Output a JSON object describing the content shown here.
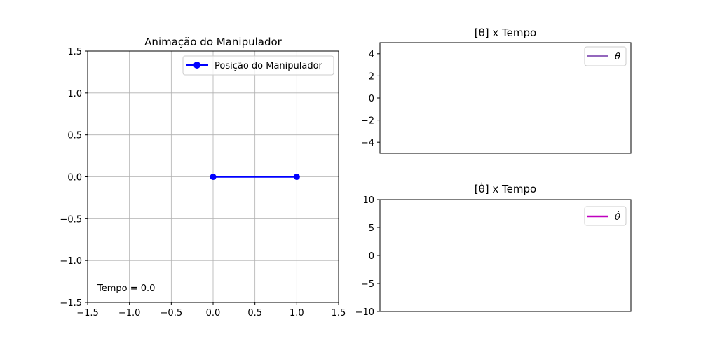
{
  "chart_data": [
    {
      "type": "line",
      "title": "Animação do Manipulador",
      "xlim": [
        -1.5,
        1.5
      ],
      "ylim": [
        -1.5,
        1.5
      ],
      "xticks": [
        "−1.5",
        "−1.0",
        "−0.5",
        "0.0",
        "0.5",
        "1.0",
        "1.5"
      ],
      "xtick_values": [
        -1.5,
        -1.0,
        -0.5,
        0.0,
        0.5,
        1.0,
        1.5
      ],
      "yticks": [
        "−1.5",
        "−1.0",
        "−0.5",
        "0.0",
        "0.5",
        "1.0",
        "1.5"
      ],
      "ytick_values": [
        -1.5,
        -1.0,
        -0.5,
        0.0,
        0.5,
        1.0,
        1.5
      ],
      "grid": true,
      "legend": "top-right",
      "series": [
        {
          "name": "Posição do Manipulador",
          "color": "#0000ff",
          "marker": "circle",
          "x": [
            0.0,
            1.0
          ],
          "y": [
            0.0,
            0.0
          ]
        }
      ],
      "annotation": "Tempo = 0.0"
    },
    {
      "type": "line",
      "title": "[θ] x Tempo",
      "ylim": [
        -5,
        5
      ],
      "yticks": [
        "4",
        "2",
        "0",
        "−2",
        "−4"
      ],
      "ytick_values": [
        4,
        2,
        0,
        -2,
        -4
      ],
      "grid": false,
      "legend": "top-right",
      "series": [
        {
          "name": "θ",
          "color": "#9467bd",
          "x": [],
          "y": []
        }
      ]
    },
    {
      "type": "line",
      "title": "[θ̇] x Tempo",
      "ylim": [
        -10,
        10
      ],
      "yticks": [
        "10",
        "5",
        "0",
        "−5",
        "−10"
      ],
      "ytick_values": [
        10,
        5,
        0,
        -5,
        -10
      ],
      "grid": false,
      "legend": "top-right",
      "series": [
        {
          "name": "θ̇",
          "color": "#bf00bf",
          "x": [],
          "y": []
        }
      ]
    }
  ]
}
